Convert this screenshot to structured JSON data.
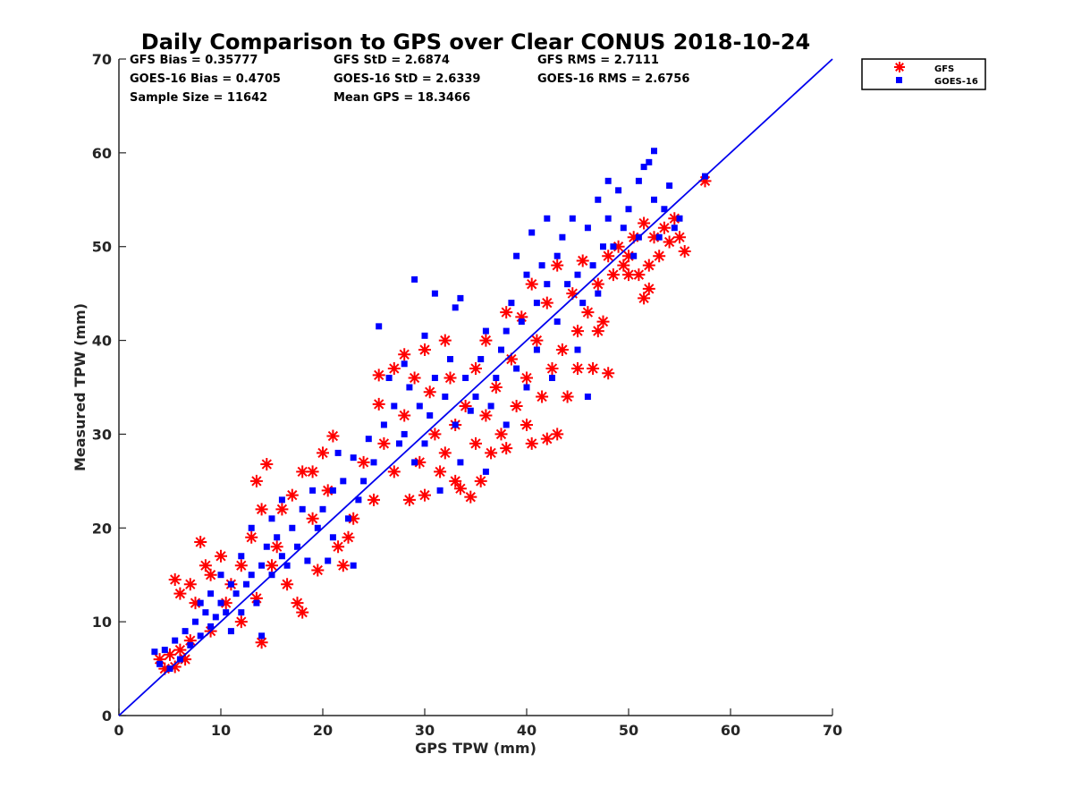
{
  "chart_data": {
    "type": "scatter",
    "title": "Daily Comparison to GPS over Clear CONUS 2018-10-24",
    "xlabel": "GPS TPW (mm)",
    "ylabel": "Measured TPW (mm)",
    "xlim": [
      0,
      70
    ],
    "ylim": [
      0,
      70
    ],
    "xticks": [
      "0",
      "10",
      "20",
      "30",
      "40",
      "50",
      "60",
      "70"
    ],
    "yticks": [
      "0",
      "10",
      "20",
      "30",
      "40",
      "50",
      "60",
      "70"
    ],
    "legend_position": "outside-top-right",
    "grid": false,
    "stats": [
      "GFS Bias = 0.35777",
      "GFS StD = 2.6874",
      "GFS RMS = 2.7111",
      "GOES-16 Bias = 0.4705",
      "GOES-16 StD = 2.6339",
      "GOES-16 RMS = 2.6756",
      "Sample Size = 11642",
      "Mean GPS = 18.3466"
    ],
    "one_to_one_line": [
      [
        0,
        0
      ],
      [
        70,
        70
      ]
    ],
    "series": [
      {
        "name": "GFS",
        "marker": "asterisk",
        "color": "#ff0000",
        "points": [
          [
            4,
            6
          ],
          [
            4.5,
            5
          ],
          [
            5,
            6.5
          ],
          [
            5.5,
            5.2
          ],
          [
            6,
            7
          ],
          [
            6.5,
            6
          ],
          [
            7,
            8
          ],
          [
            5.5,
            14.5
          ],
          [
            6,
            13
          ],
          [
            7,
            14
          ],
          [
            7.5,
            12
          ],
          [
            8,
            18.5
          ],
          [
            8.5,
            16
          ],
          [
            9,
            15
          ],
          [
            9,
            9
          ],
          [
            10,
            17
          ],
          [
            10.5,
            12
          ],
          [
            11,
            14
          ],
          [
            12,
            16
          ],
          [
            12,
            10
          ],
          [
            13,
            19
          ],
          [
            13.5,
            12.5
          ],
          [
            14,
            7.8
          ],
          [
            14.5,
            26.8
          ],
          [
            13.5,
            25
          ],
          [
            14,
            22
          ],
          [
            15,
            16
          ],
          [
            15.5,
            18
          ],
          [
            16,
            22
          ],
          [
            16.5,
            14
          ],
          [
            17,
            23.5
          ],
          [
            17.5,
            12
          ],
          [
            18,
            26
          ],
          [
            18,
            11
          ],
          [
            19,
            21
          ],
          [
            19,
            26
          ],
          [
            19.5,
            15.5
          ],
          [
            20,
            28
          ],
          [
            20.5,
            24
          ],
          [
            21,
            29.8
          ],
          [
            21.5,
            18
          ],
          [
            22,
            16
          ],
          [
            22.5,
            19
          ],
          [
            23,
            21
          ],
          [
            24,
            27
          ],
          [
            25,
            23
          ],
          [
            25.5,
            36.3
          ],
          [
            25.5,
            33.2
          ],
          [
            26,
            29
          ],
          [
            27,
            37
          ],
          [
            27,
            26
          ],
          [
            28,
            38.5
          ],
          [
            28,
            32
          ],
          [
            28.5,
            23
          ],
          [
            29,
            36
          ],
          [
            29.5,
            27
          ],
          [
            30,
            39
          ],
          [
            30,
            23.5
          ],
          [
            30.5,
            34.5
          ],
          [
            31,
            30
          ],
          [
            31.5,
            26
          ],
          [
            32,
            40
          ],
          [
            32,
            28
          ],
          [
            32.5,
            36
          ],
          [
            33,
            31
          ],
          [
            33,
            25
          ],
          [
            33.5,
            24.2
          ],
          [
            34,
            33
          ],
          [
            34.5,
            23.3
          ],
          [
            35,
            37
          ],
          [
            35,
            29
          ],
          [
            35.5,
            25
          ],
          [
            36,
            40
          ],
          [
            36,
            32
          ],
          [
            36.5,
            28
          ],
          [
            37,
            35
          ],
          [
            37.5,
            30
          ],
          [
            38,
            43
          ],
          [
            38,
            28.5
          ],
          [
            38.5,
            38
          ],
          [
            39,
            33
          ],
          [
            39.5,
            42.5
          ],
          [
            40,
            36
          ],
          [
            40,
            31
          ],
          [
            40.5,
            46
          ],
          [
            40.5,
            29
          ],
          [
            41,
            40
          ],
          [
            41.5,
            34
          ],
          [
            42,
            44
          ],
          [
            42,
            29.5
          ],
          [
            42.5,
            37
          ],
          [
            43,
            48
          ],
          [
            43,
            30
          ],
          [
            43.5,
            39
          ],
          [
            44,
            34
          ],
          [
            44.5,
            45
          ],
          [
            45,
            41
          ],
          [
            45,
            37
          ],
          [
            45.5,
            48.5
          ],
          [
            46,
            43
          ],
          [
            46.5,
            37
          ],
          [
            47,
            41
          ],
          [
            47,
            46
          ],
          [
            47.5,
            42
          ],
          [
            48,
            49
          ],
          [
            48,
            36.5
          ],
          [
            48.5,
            47
          ],
          [
            49,
            50
          ],
          [
            49.5,
            48
          ],
          [
            50,
            49
          ],
          [
            50,
            47
          ],
          [
            50.5,
            51
          ],
          [
            51,
            47
          ],
          [
            51.5,
            52.5
          ],
          [
            51.5,
            44.5
          ],
          [
            52,
            48
          ],
          [
            52,
            45.5
          ],
          [
            52.5,
            51
          ],
          [
            53,
            49
          ],
          [
            53.5,
            52
          ],
          [
            54,
            50.5
          ],
          [
            54.5,
            53
          ],
          [
            55,
            51
          ],
          [
            55.5,
            49.5
          ],
          [
            57.5,
            57
          ]
        ]
      },
      {
        "name": "GOES-16",
        "marker": "square",
        "color": "#0000ff",
        "points": [
          [
            3.5,
            6.8
          ],
          [
            4,
            5.5
          ],
          [
            4.5,
            7
          ],
          [
            5,
            5
          ],
          [
            5.5,
            8
          ],
          [
            6,
            6
          ],
          [
            6.5,
            9
          ],
          [
            7,
            7.5
          ],
          [
            7.5,
            10
          ],
          [
            8,
            8.5
          ],
          [
            8,
            12
          ],
          [
            8.5,
            11
          ],
          [
            9,
            9.5
          ],
          [
            9,
            13
          ],
          [
            9.5,
            10.5
          ],
          [
            10,
            12
          ],
          [
            10,
            15
          ],
          [
            10.5,
            11
          ],
          [
            11,
            14
          ],
          [
            11,
            9
          ],
          [
            11.5,
            13
          ],
          [
            12,
            17
          ],
          [
            12,
            11
          ],
          [
            12.5,
            14
          ],
          [
            13,
            15
          ],
          [
            13,
            20
          ],
          [
            13.5,
            12
          ],
          [
            14,
            16
          ],
          [
            14,
            8.5
          ],
          [
            14.5,
            18
          ],
          [
            15,
            15
          ],
          [
            15,
            21
          ],
          [
            15.5,
            19
          ],
          [
            16,
            17
          ],
          [
            16,
            23
          ],
          [
            16.5,
            16
          ],
          [
            17,
            20
          ],
          [
            17.5,
            18
          ],
          [
            18,
            22
          ],
          [
            18.5,
            16.5
          ],
          [
            19,
            24
          ],
          [
            19.5,
            20
          ],
          [
            20,
            22
          ],
          [
            20.5,
            16.5
          ],
          [
            21,
            24
          ],
          [
            21,
            19
          ],
          [
            21.5,
            28
          ],
          [
            22,
            25
          ],
          [
            22.5,
            21
          ],
          [
            23,
            27.5
          ],
          [
            23,
            16
          ],
          [
            23.5,
            23
          ],
          [
            24,
            25
          ],
          [
            24.5,
            29.5
          ],
          [
            25,
            27
          ],
          [
            25.5,
            41.5
          ],
          [
            26,
            31
          ],
          [
            26.5,
            36
          ],
          [
            27,
            33
          ],
          [
            27.5,
            29
          ],
          [
            28,
            30
          ],
          [
            28,
            37.5
          ],
          [
            28.5,
            35
          ],
          [
            29,
            46.5
          ],
          [
            29,
            27
          ],
          [
            29.5,
            33
          ],
          [
            30,
            40.5
          ],
          [
            30,
            29
          ],
          [
            30.5,
            32
          ],
          [
            31,
            45
          ],
          [
            31,
            36
          ],
          [
            31.5,
            24
          ],
          [
            32,
            34
          ],
          [
            32.5,
            38
          ],
          [
            33,
            43.5
          ],
          [
            33,
            31
          ],
          [
            33.5,
            44.5
          ],
          [
            33.5,
            27
          ],
          [
            34,
            36
          ],
          [
            34.5,
            32.5
          ],
          [
            35,
            34
          ],
          [
            35.5,
            38
          ],
          [
            36,
            41
          ],
          [
            36,
            26
          ],
          [
            36.5,
            33
          ],
          [
            37,
            36
          ],
          [
            37.5,
            39
          ],
          [
            38,
            41
          ],
          [
            38,
            31
          ],
          [
            38.5,
            44
          ],
          [
            39,
            37
          ],
          [
            39,
            49
          ],
          [
            39.5,
            42
          ],
          [
            40,
            47
          ],
          [
            40,
            35
          ],
          [
            40.5,
            51.5
          ],
          [
            41,
            44
          ],
          [
            41,
            39
          ],
          [
            41.5,
            48
          ],
          [
            42,
            53
          ],
          [
            42,
            46
          ],
          [
            42.5,
            36
          ],
          [
            43,
            49
          ],
          [
            43,
            42
          ],
          [
            43.5,
            51
          ],
          [
            44,
            46
          ],
          [
            44.5,
            53
          ],
          [
            45,
            47
          ],
          [
            45,
            39
          ],
          [
            45.5,
            44
          ],
          [
            46,
            52
          ],
          [
            46,
            34
          ],
          [
            46.5,
            48
          ],
          [
            47,
            55
          ],
          [
            47,
            45
          ],
          [
            47.5,
            50
          ],
          [
            48,
            57
          ],
          [
            48,
            53
          ],
          [
            48.5,
            50
          ],
          [
            49,
            56
          ],
          [
            49.5,
            52
          ],
          [
            50,
            54
          ],
          [
            50.5,
            49
          ],
          [
            51,
            57
          ],
          [
            51,
            51
          ],
          [
            51.5,
            58.5
          ],
          [
            52,
            59
          ],
          [
            52.5,
            60.2
          ],
          [
            52.5,
            55
          ],
          [
            53,
            51
          ],
          [
            53.5,
            54
          ],
          [
            54,
            56.5
          ],
          [
            54.5,
            52
          ],
          [
            55,
            53
          ],
          [
            57.5,
            57.5
          ]
        ]
      }
    ]
  }
}
